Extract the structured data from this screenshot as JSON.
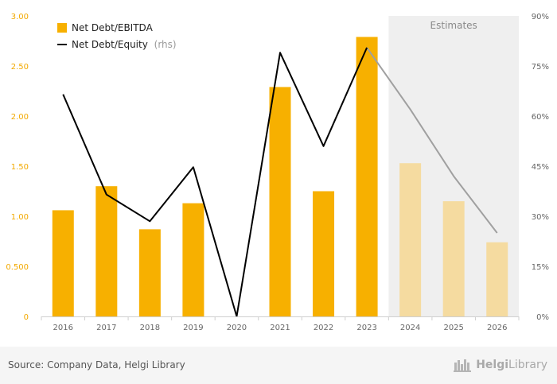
{
  "chart_data": {
    "type": "bar",
    "categories": [
      "2016",
      "2017",
      "2018",
      "2019",
      "2020",
      "2021",
      "2022",
      "2023",
      "2024",
      "2025",
      "2026"
    ],
    "series": [
      {
        "name": "Net Debt/EBITDA",
        "axis": "left",
        "type": "bar",
        "values": [
          1.06,
          1.3,
          0.87,
          1.13,
          0.0,
          2.29,
          1.25,
          2.79,
          1.53,
          1.15,
          0.74
        ]
      },
      {
        "name": "Net Debt/Equity",
        "name_suffix": "(rhs)",
        "axis": "right",
        "type": "line",
        "values": [
          0.665,
          0.365,
          0.285,
          0.447,
          0.0,
          0.79,
          0.51,
          0.805,
          0.62,
          0.42,
          0.25
        ]
      }
    ],
    "estimate_from_index": 8,
    "estimates_label": "Estimates",
    "y_left": {
      "min": 0,
      "max": 3.0,
      "ticks": [
        0,
        0.5,
        1.0,
        1.5,
        2.0,
        2.5,
        3.0
      ],
      "tick_labels": [
        "0",
        "0.500",
        "1.00",
        "1.50",
        "2.00",
        "2.50",
        "3.00"
      ]
    },
    "y_right": {
      "min": 0,
      "max": 0.9,
      "ticks": [
        0,
        0.15,
        0.3,
        0.45,
        0.6,
        0.75,
        0.9
      ],
      "tick_labels": [
        "0%",
        "15%",
        "30%",
        "45%",
        "60%",
        "75%",
        "90%"
      ]
    },
    "legend_position": "top-left",
    "grid": false,
    "colors": {
      "bar": "#f7b000",
      "bar_estimate": "#f5dba0",
      "line": "#000000",
      "line_estimate": "#a0a0a0",
      "estimate_band": "#efefef",
      "left_axis_text": "#f2a900"
    }
  },
  "footer": {
    "source": "Source: Company Data, Helgi Library",
    "brand_part1": "Helgi",
    "brand_part2": "Library"
  }
}
